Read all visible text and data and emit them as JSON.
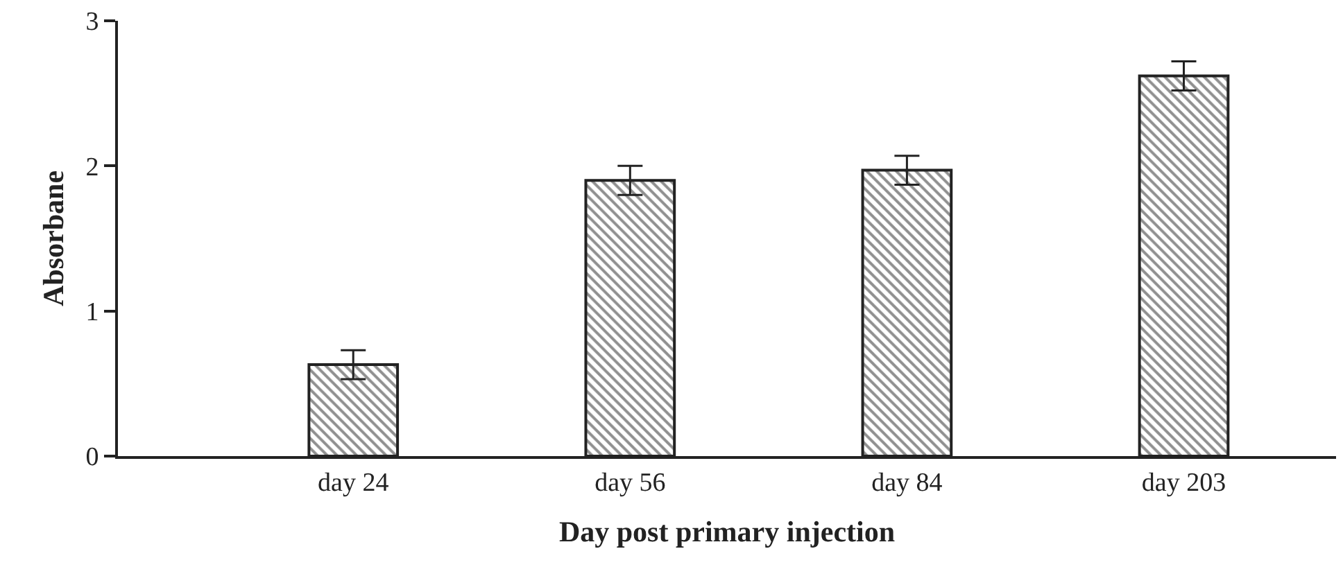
{
  "chart_data": {
    "type": "bar",
    "xlabel": "Day post primary injection",
    "ylabel": "Absorbane",
    "categories": [
      "day 24",
      "day 56",
      "day 84",
      "day 203"
    ],
    "values": [
      0.63,
      1.9,
      1.97,
      2.62
    ],
    "errors": [
      0.1,
      0.1,
      0.1,
      0.1
    ],
    "color": "#222222",
    "ylim": [
      0,
      3
    ],
    "yticks": [
      0,
      1,
      2,
      3
    ]
  }
}
